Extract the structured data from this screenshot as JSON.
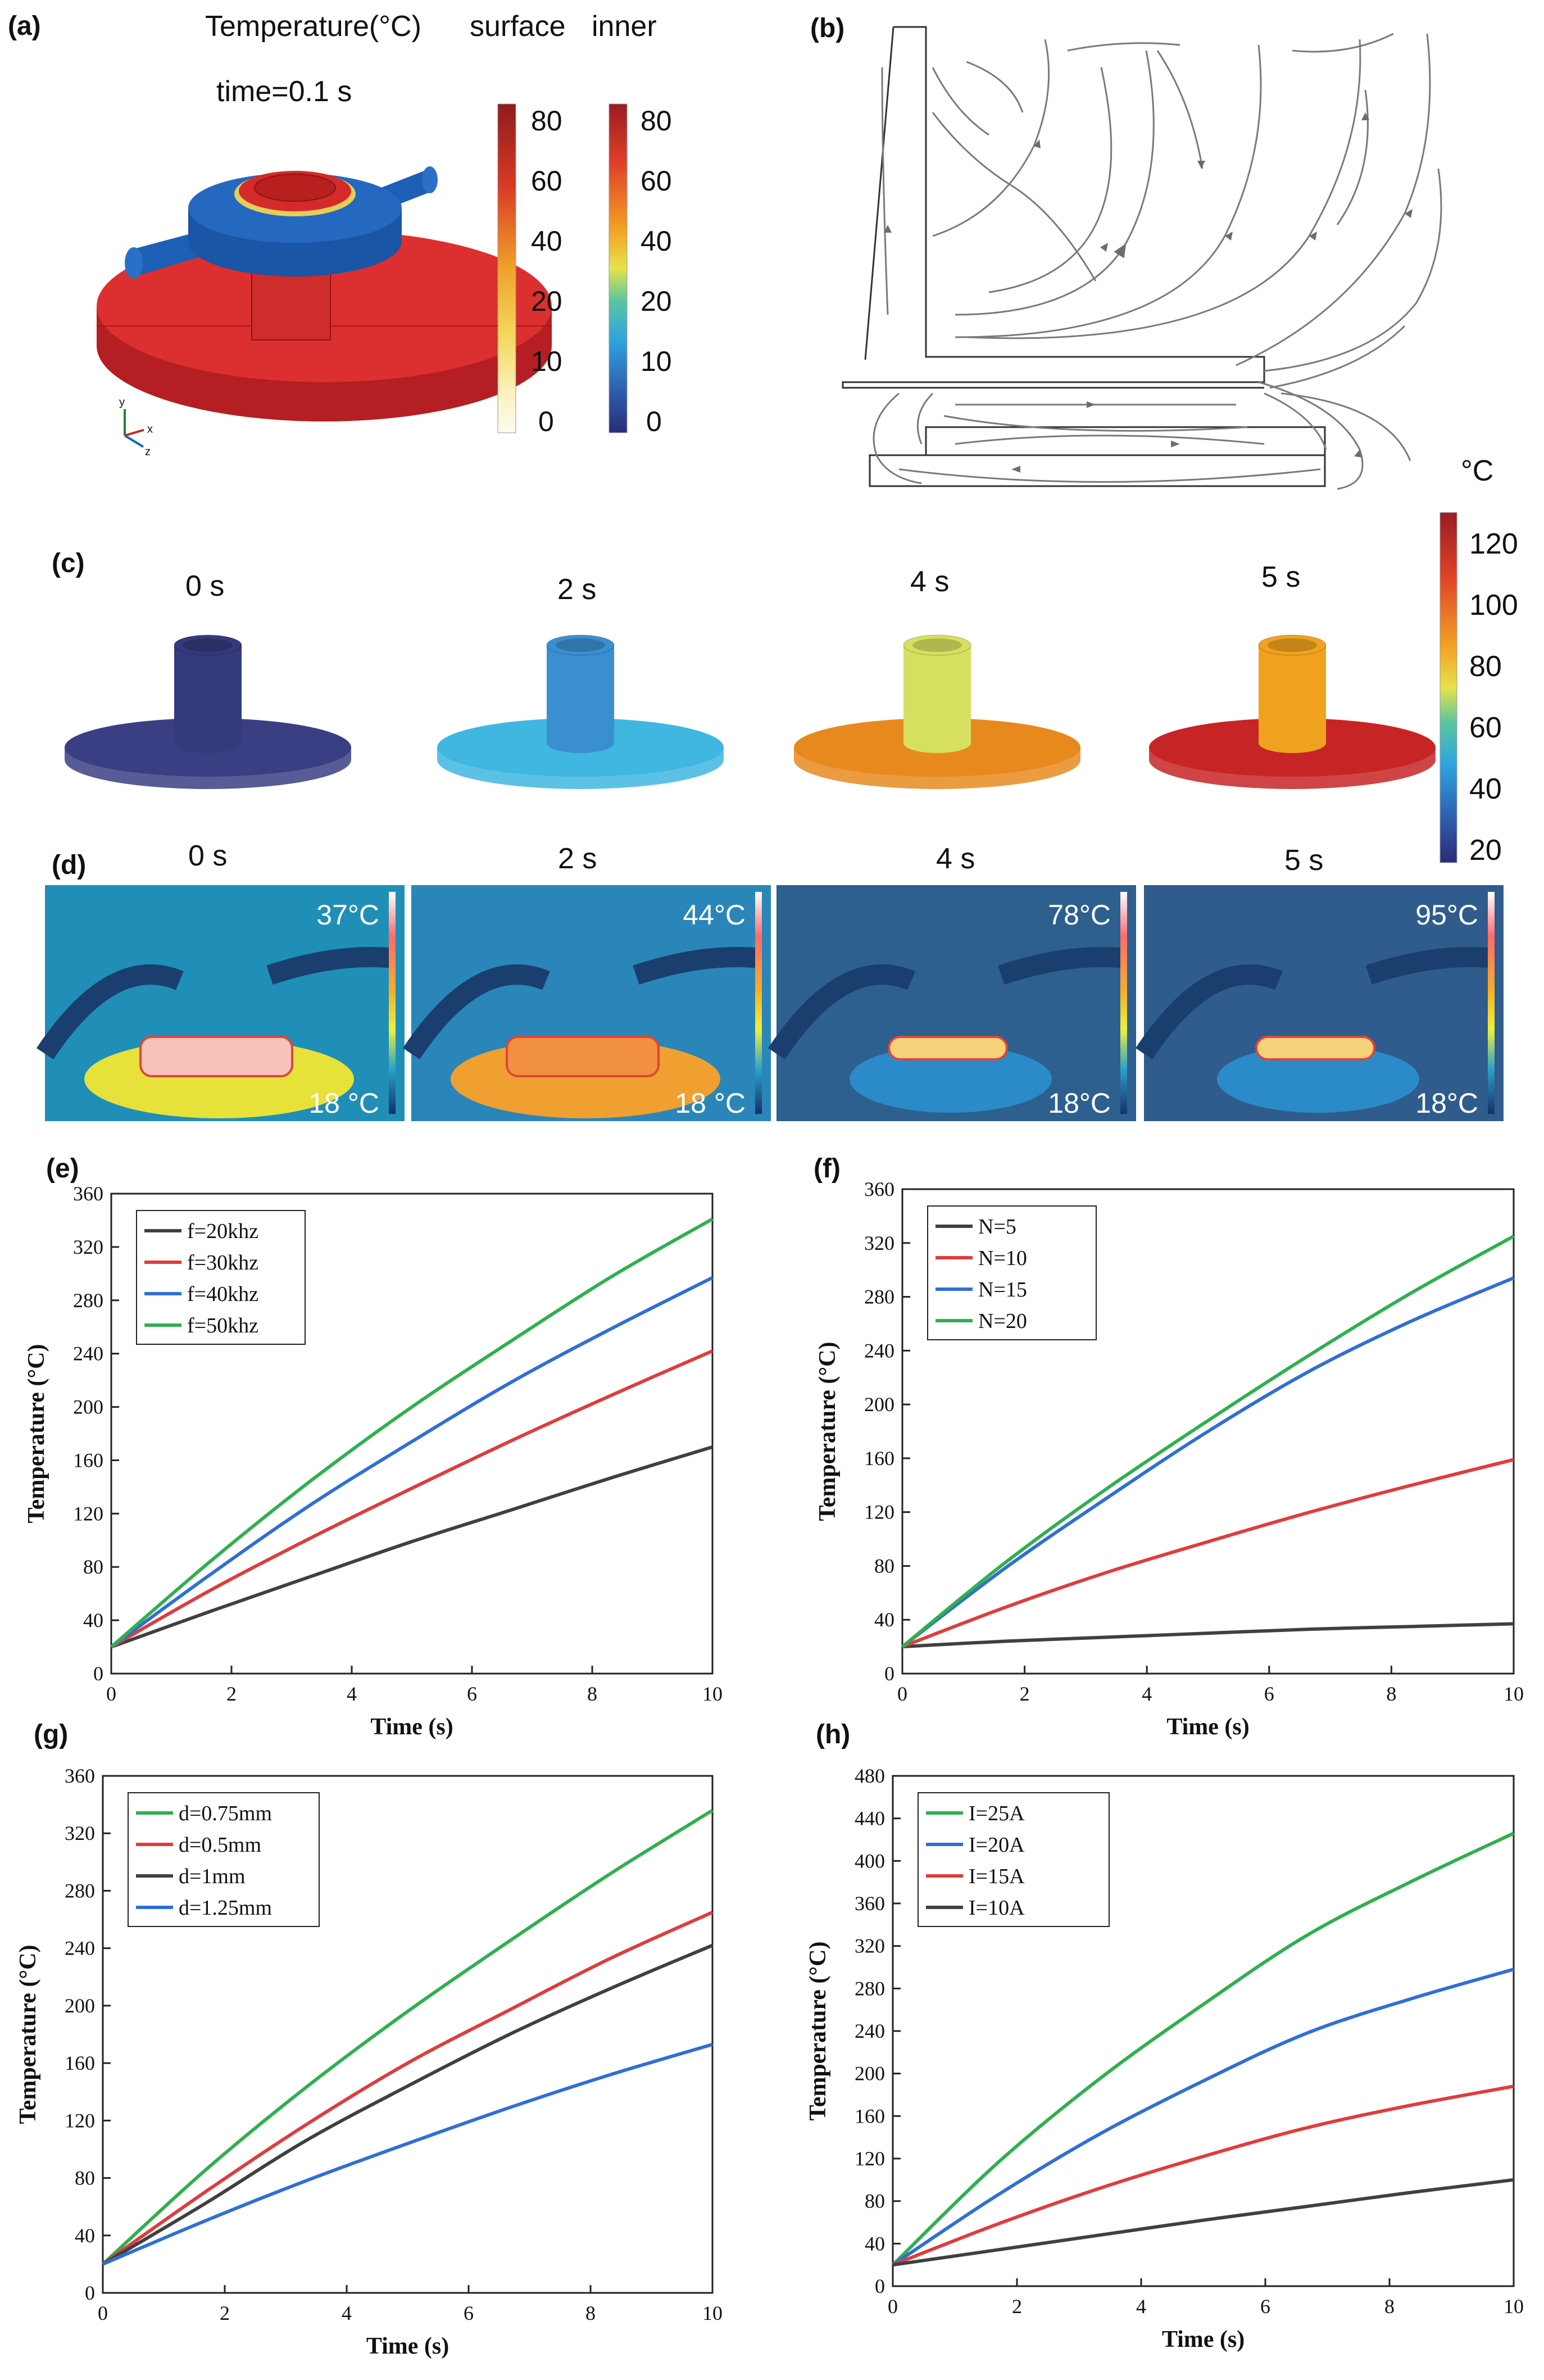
{
  "panel_labels": {
    "a": "(a)",
    "b": "(b)",
    "c": "(c)",
    "d": "(d)",
    "e": "(e)",
    "f": "(f)",
    "g": "(g)",
    "h": "(h)"
  },
  "panel_a": {
    "title": "Temperature(°C)",
    "col_surface": "surface",
    "col_inner": "inner",
    "time_label": "time=0.1 s",
    "surface_ticks": [
      "80",
      "60",
      "40",
      "20",
      "10",
      "0"
    ],
    "inner_ticks": [
      "80",
      "60",
      "40",
      "20",
      "10",
      "0"
    ],
    "axis_y": "y",
    "axis_x": "x",
    "axis_z": "z"
  },
  "panel_c": {
    "times": [
      "0 s",
      "2 s",
      "4 s",
      "5 s"
    ],
    "unit": "°C",
    "ticks": [
      "120",
      "100",
      "80",
      "60",
      "40",
      "20"
    ],
    "disc_colors": [
      "#3a3f84",
      "#3fb7e0",
      "#e8891e",
      "#c72525"
    ],
    "tube_colors": [
      "#343a7a",
      "#3a8fd0",
      "#d6e060",
      "#f0a21e"
    ]
  },
  "panel_d": {
    "times": [
      "0 s",
      "2 s",
      "4 s",
      "5 s"
    ],
    "max_labels": [
      "37°C",
      "44°C",
      "78°C",
      "95°C"
    ],
    "min_labels": [
      "18 °C",
      "18 °C",
      "18°C",
      "18°C"
    ]
  },
  "chart_data": [
    {
      "panel": "(e)",
      "type": "line",
      "xlabel": "Time (s)",
      "ylabel": "Temperature (°C)",
      "xlim": [
        0,
        10
      ],
      "ylim": [
        0,
        360
      ],
      "xticks": [
        0,
        2,
        4,
        6,
        8,
        10
      ],
      "yticks": [
        0,
        40,
        80,
        120,
        160,
        200,
        240,
        280,
        320,
        360
      ],
      "series": [
        {
          "name": "f=20khz",
          "color": "#404040",
          "values": [
            20,
            47,
            73,
            99,
            123,
            147,
            170
          ]
        },
        {
          "name": "f=30khz",
          "color": "#e03c3c",
          "values": [
            20,
            63,
            102,
            139,
            175,
            209,
            242
          ]
        },
        {
          "name": "f=40khz",
          "color": "#2f6fd6",
          "values": [
            20,
            75,
            127,
            174,
            219,
            259,
            297
          ]
        },
        {
          "name": "f=50khz",
          "color": "#2fb04e",
          "values": [
            20,
            85,
            145,
            200,
            250,
            298,
            341
          ]
        }
      ],
      "x": [
        0,
        1.67,
        3.33,
        5,
        6.67,
        8.33,
        10
      ]
    },
    {
      "panel": "(f)",
      "type": "line",
      "xlabel": "Time (s)",
      "ylabel": "Temperature (°C)",
      "xlim": [
        0,
        10
      ],
      "ylim": [
        0,
        360
      ],
      "xticks": [
        0,
        2,
        4,
        6,
        8,
        10
      ],
      "yticks": [
        0,
        40,
        80,
        120,
        160,
        200,
        240,
        280,
        320,
        360
      ],
      "series": [
        {
          "name": "N=5",
          "color": "#404040",
          "values": [
            20,
            24,
            27,
            30,
            33,
            35,
            37
          ]
        },
        {
          "name": "N=10",
          "color": "#e03c3c",
          "values": [
            20,
            49,
            75,
            98,
            120,
            140,
            159
          ]
        },
        {
          "name": "N=15",
          "color": "#2f6fd6",
          "values": [
            20,
            78,
            130,
            180,
            225,
            262,
            294
          ]
        },
        {
          "name": "N=20",
          "color": "#2fb04e",
          "values": [
            20,
            82,
            137,
            188,
            237,
            283,
            325
          ]
        }
      ],
      "x": [
        0,
        1.67,
        3.33,
        5,
        6.67,
        8.33,
        10
      ]
    },
    {
      "panel": "(g)",
      "type": "line",
      "xlabel": "Time (s)",
      "ylabel": "Temperature (°C)",
      "xlim": [
        0,
        10
      ],
      "ylim": [
        0,
        360
      ],
      "xticks": [
        0,
        2,
        4,
        6,
        8,
        10
      ],
      "yticks": [
        0,
        40,
        80,
        120,
        160,
        200,
        240,
        280,
        320,
        360
      ],
      "series": [
        {
          "name": "d=0.75mm",
          "color": "#2fb04e",
          "values": [
            20,
            85,
            143,
            196,
            245,
            292,
            336
          ]
        },
        {
          "name": "d=0.5mm",
          "color": "#e03c3c",
          "values": [
            20,
            70,
            117,
            160,
            197,
            233,
            265
          ]
        },
        {
          "name": "d=1mm",
          "color": "#404040",
          "values": [
            20,
            62,
            106,
            144,
            180,
            212,
            242
          ]
        },
        {
          "name": "d=1.25mm",
          "color": "#2f6fd6",
          "values": [
            20,
            50,
            78,
            104,
            129,
            152,
            173
          ]
        }
      ],
      "x": [
        0,
        1.67,
        3.33,
        5,
        6.67,
        8.33,
        10
      ]
    },
    {
      "panel": "(h)",
      "type": "line",
      "xlabel": "Time (s)",
      "ylabel": "Temperature (°C)",
      "xlim": [
        0,
        10
      ],
      "ylim": [
        0,
        480
      ],
      "xticks": [
        0,
        2,
        4,
        6,
        8,
        10
      ],
      "yticks": [
        0,
        40,
        80,
        120,
        160,
        200,
        240,
        280,
        320,
        360,
        400,
        440,
        480
      ],
      "series": [
        {
          "name": "I=25A",
          "color": "#2fb04e",
          "values": [
            20,
            115,
            195,
            265,
            330,
            380,
            426
          ]
        },
        {
          "name": "I=20A",
          "color": "#2f6fd6",
          "values": [
            20,
            85,
            143,
            193,
            238,
            270,
            298
          ]
        },
        {
          "name": "I=15A",
          "color": "#e03c3c",
          "values": [
            20,
            58,
            92,
            122,
            149,
            170,
            188
          ]
        },
        {
          "name": "I=10A",
          "color": "#404040",
          "values": [
            20,
            34,
            48,
            62,
            75,
            88,
            100
          ]
        }
      ],
      "x": [
        0,
        1.67,
        3.33,
        5,
        6.67,
        8.33,
        10
      ]
    }
  ]
}
